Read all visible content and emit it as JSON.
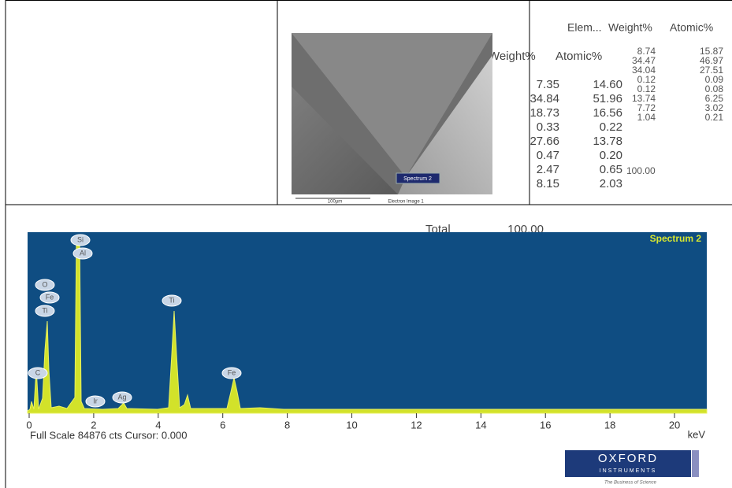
{
  "sem_image": {
    "spectrum_label": "Spectrum 2",
    "scale_label": "100µm",
    "caption": "Electron Image 1"
  },
  "overlay_table": {
    "headers": [
      "Weight%",
      "Atomic%"
    ],
    "rows": [
      [
        "7.35",
        "14.60"
      ],
      [
        "34.84",
        "51.96"
      ],
      [
        "18.73",
        "16.56"
      ],
      [
        "0.33",
        "0.22"
      ],
      [
        "27.66",
        "13.78"
      ],
      [
        "0.47",
        "0.20"
      ],
      [
        "2.47",
        "0.65"
      ],
      [
        "8.15",
        "2.03"
      ]
    ],
    "total_label": "Total",
    "total": "100.00"
  },
  "results_table": {
    "headers": [
      "Elem...",
      "Weight%",
      "Atomic%"
    ],
    "rows": [
      [
        "8.74",
        "15.87"
      ],
      [
        "34.47",
        "46.97"
      ],
      [
        "34.04",
        "27.51"
      ],
      [
        "0.12",
        "0.09"
      ],
      [
        "0.12",
        "0.08"
      ],
      [
        "13.74",
        "6.25"
      ],
      [
        "7.72",
        "3.02"
      ],
      [
        "1.04",
        "0.21"
      ]
    ],
    "total": "100.00"
  },
  "spectrum": {
    "title": "Spectrum 2",
    "xlim": [
      0,
      21
    ],
    "xticks": [
      0,
      2,
      4,
      6,
      8,
      10,
      12,
      14,
      16,
      18,
      20
    ],
    "unit": "keV",
    "status": "Full Scale 84876 cts Cursor: 0.000",
    "peak_labels": [
      "Si",
      "Al",
      "O",
      "Fe",
      "Ti",
      "C",
      "Ti",
      "Fe",
      "Ir",
      "Ag"
    ]
  },
  "logo": {
    "name": "OXFORD",
    "sub": "INSTRUMENTS",
    "tagline": "The Business of Science"
  }
}
